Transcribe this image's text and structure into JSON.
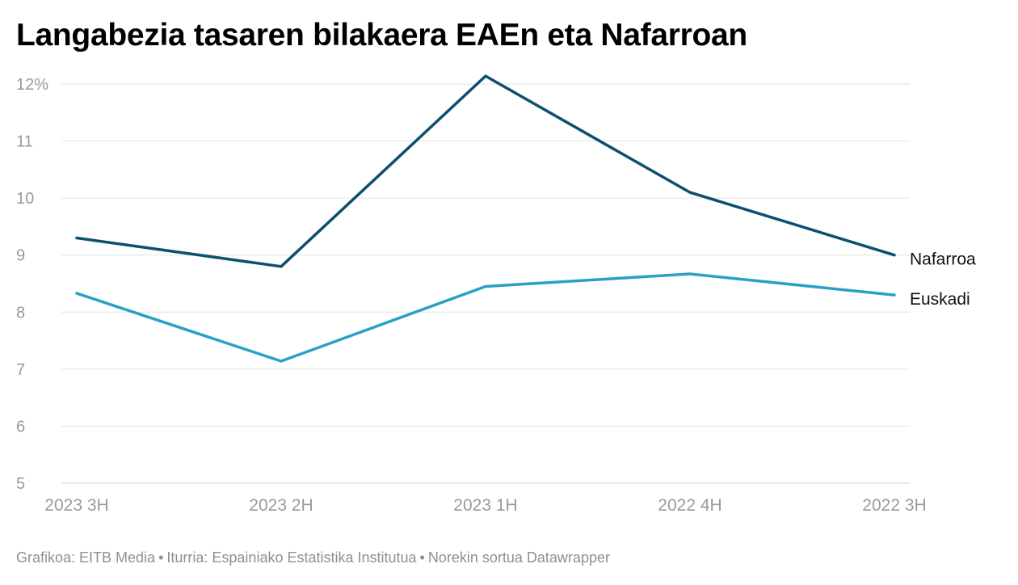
{
  "header": {
    "title": "Langabezia tasaren bilakaera EAEn eta Nafarroan"
  },
  "footer": {
    "credit": "Grafikoa: EITB Media",
    "source": "Iturria: Espainiako Estatistika Institutua",
    "tool": "Norekin sortua Datawrapper",
    "separator": "•"
  },
  "colors": {
    "nafarroa": "#0d4f70",
    "euskadi": "#2aa0c6",
    "grid": "#e2e2e2",
    "axis_text": "#9a9a9a",
    "label_text": "#111111"
  },
  "chart_data": {
    "type": "line",
    "title": "Langabezia tasaren bilakaera EAEn eta Nafarroan",
    "xlabel": "",
    "ylabel": "",
    "categories": [
      "2023 3H",
      "2023 2H",
      "2023 1H",
      "2022 4H",
      "2022 3H"
    ],
    "yticks": [
      5,
      6,
      7,
      8,
      9,
      10,
      11,
      12
    ],
    "ytick_labels": [
      "5",
      "6",
      "7",
      "8",
      "9",
      "10",
      "11",
      "12%"
    ],
    "ylim": [
      5,
      12
    ],
    "grid": true,
    "series": [
      {
        "name": "Nafarroa",
        "color": "#0d4f70",
        "values": [
          9.3,
          8.8,
          12.14,
          10.1,
          9.0
        ]
      },
      {
        "name": "Euskadi",
        "color": "#2aa0c6",
        "values": [
          8.33,
          7.14,
          8.45,
          8.67,
          8.3
        ]
      }
    ]
  }
}
